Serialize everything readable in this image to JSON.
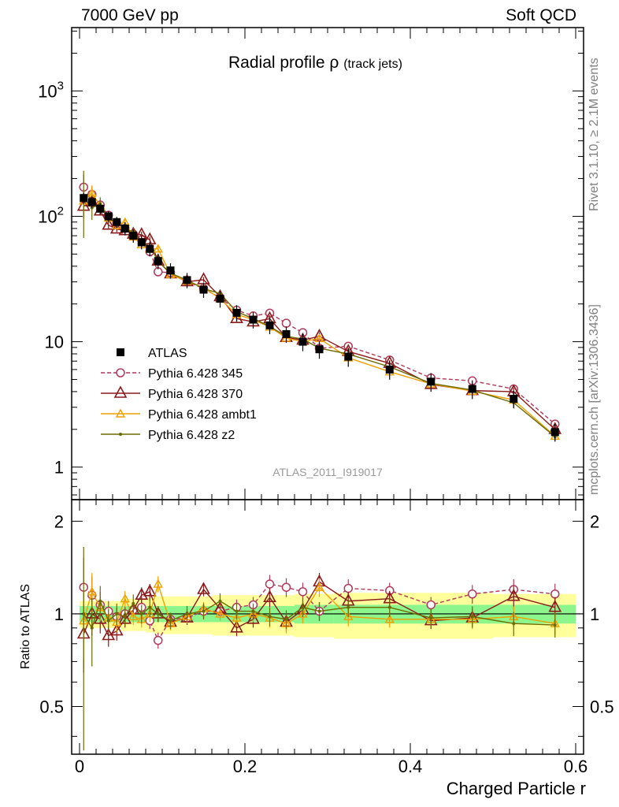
{
  "header": {
    "left": "7000 GeV pp",
    "right": "Soft QCD"
  },
  "side_labels": {
    "rivet": "Rivet 3.1.10, ≥ 2.1M events",
    "mcplots": "mcplots.cern.ch [arXiv:1306.3436]"
  },
  "chart_data": {
    "type": "line",
    "title": "Radial profile",
    "title_symbol": "ρ",
    "title_suffix": "(track jets)",
    "watermark": "ATLAS_2011_I919017",
    "xlabel": "Charged Particle r",
    "ylabel_ratio": "Ratio to ATLAS",
    "xlim": [
      0,
      0.6
    ],
    "ylim": [
      0.55,
      3200
    ],
    "yscale": "log",
    "ratio_ylim": [
      0.35,
      2.35
    ],
    "ratio_yscale": "log",
    "x_ticks": [
      "0",
      "0.2",
      "0.4",
      "0.6"
    ],
    "y_ticks": [
      {
        "label": "1",
        "value": 1
      },
      {
        "label": "10",
        "value": 10
      },
      {
        "label": "10",
        "exp": "2",
        "value": 100
      },
      {
        "label": "10",
        "exp": "3",
        "value": 1000
      }
    ],
    "ratio_ticks": [
      {
        "label": "0.5",
        "value": 0.5
      },
      {
        "label": "1",
        "value": 1
      },
      {
        "label": "2",
        "value": 2
      }
    ],
    "legend_position": "lower-left",
    "x": [
      0.005,
      0.015,
      0.025,
      0.035,
      0.045,
      0.055,
      0.065,
      0.075,
      0.085,
      0.095,
      0.11,
      0.13,
      0.15,
      0.17,
      0.19,
      0.21,
      0.23,
      0.25,
      0.27,
      0.29,
      0.325,
      0.375,
      0.425,
      0.475,
      0.525,
      0.575
    ],
    "data": {
      "name": "ATLAS",
      "values": [
        140,
        130,
        115,
        100,
        90,
        80,
        70,
        62,
        55,
        44,
        37,
        31,
        26,
        22,
        17,
        15,
        13.5,
        11.5,
        10,
        8.7,
        7.6,
        6.0,
        4.8,
        4.2,
        3.5,
        1.9
      ],
      "band_stat": [
        0.06,
        0.06,
        0.06,
        0.06,
        0.06,
        0.06,
        0.06,
        0.06,
        0.06,
        0.06,
        0.06,
        0.06,
        0.06,
        0.06,
        0.06,
        0.06,
        0.06,
        0.06,
        0.07,
        0.07,
        0.07,
        0.07,
        0.07,
        0.07,
        0.07,
        0.07
      ],
      "band_tot": [
        0.1,
        0.1,
        0.1,
        0.1,
        0.1,
        0.12,
        0.12,
        0.12,
        0.13,
        0.14,
        0.14,
        0.14,
        0.14,
        0.15,
        0.15,
        0.15,
        0.15,
        0.15,
        0.16,
        0.16,
        0.17,
        0.17,
        0.17,
        0.17,
        0.16,
        0.16
      ]
    },
    "series": [
      {
        "name": "Pythia 6.428 345",
        "color": "#b0385a",
        "marker": "circle",
        "dash": true,
        "ratio": [
          1.22,
          1.15,
          1.07,
          1.02,
          0.98,
          1.0,
          1.03,
          1.05,
          0.95,
          0.82,
          0.96,
          0.97,
          1.02,
          1.02,
          1.05,
          1.07,
          1.25,
          1.22,
          1.18,
          1.02,
          1.21,
          1.19,
          1.07,
          1.16,
          1.2,
          1.16
        ],
        "err": [
          0.25,
          0.15,
          0.1,
          0.08,
          0.07,
          0.06,
          0.06,
          0.06,
          0.06,
          0.06,
          0.05,
          0.05,
          0.05,
          0.05,
          0.06,
          0.06,
          0.07,
          0.07,
          0.07,
          0.07,
          0.07,
          0.06,
          0.06,
          0.07,
          0.08,
          0.08
        ]
      },
      {
        "name": "Pythia 6.428 370",
        "color": "#8b1a1a",
        "marker": "triangle",
        "dash": false,
        "ratio": [
          0.86,
          1.0,
          0.96,
          0.85,
          0.88,
          0.96,
          1.03,
          1.15,
          1.18,
          1.0,
          0.94,
          0.97,
          1.2,
          1.04,
          0.9,
          0.96,
          1.13,
          0.94,
          1.03,
          1.27,
          1.1,
          1.12,
          0.95,
          0.97,
          1.14,
          1.05
        ],
        "err": [
          0.25,
          0.15,
          0.1,
          0.08,
          0.07,
          0.06,
          0.06,
          0.06,
          0.06,
          0.06,
          0.05,
          0.05,
          0.05,
          0.05,
          0.06,
          0.06,
          0.07,
          0.07,
          0.07,
          0.07,
          0.07,
          0.06,
          0.06,
          0.07,
          0.08,
          0.08
        ]
      },
      {
        "name": "Pythia 6.428 ambt1",
        "color": "#f0a000",
        "marker": "triangle-small",
        "dash": false,
        "ratio": [
          0.95,
          1.18,
          1.05,
          0.97,
          0.94,
          1.12,
          0.98,
          0.96,
          1.0,
          1.25,
          0.93,
          0.98,
          1.04,
          1.0,
          0.97,
          1.0,
          0.97,
          0.93,
          1.0,
          1.22,
          0.98,
          0.96,
          0.96,
          0.96,
          0.98,
          0.93
        ],
        "err": [
          0.25,
          0.15,
          0.1,
          0.08,
          0.07,
          0.06,
          0.06,
          0.06,
          0.06,
          0.06,
          0.05,
          0.05,
          0.05,
          0.05,
          0.06,
          0.06,
          0.07,
          0.07,
          0.07,
          0.07,
          0.07,
          0.06,
          0.06,
          0.07,
          0.08,
          0.08
        ]
      },
      {
        "name": "Pythia 6.428 z2",
        "color": "#6b6b00",
        "marker": "dot",
        "dash": false,
        "ratio": [
          1.0,
          0.9,
          1.1,
          0.95,
          1.0,
          0.98,
          1.08,
          1.0,
          1.05,
          1.0,
          0.95,
          1.0,
          1.02,
          1.1,
          1.02,
          1.02,
          0.98,
          0.96,
          1.05,
          1.02,
          1.05,
          1.05,
          0.97,
          0.98,
          0.93,
          0.92
        ],
        "err": [
          0.65,
          0.25,
          0.12,
          0.09,
          0.08,
          0.07,
          0.07,
          0.07,
          0.07,
          0.06,
          0.06,
          0.06,
          0.06,
          0.06,
          0.06,
          0.06,
          0.07,
          0.07,
          0.07,
          0.07,
          0.07,
          0.07,
          0.07,
          0.08,
          0.09,
          0.09
        ]
      }
    ]
  }
}
